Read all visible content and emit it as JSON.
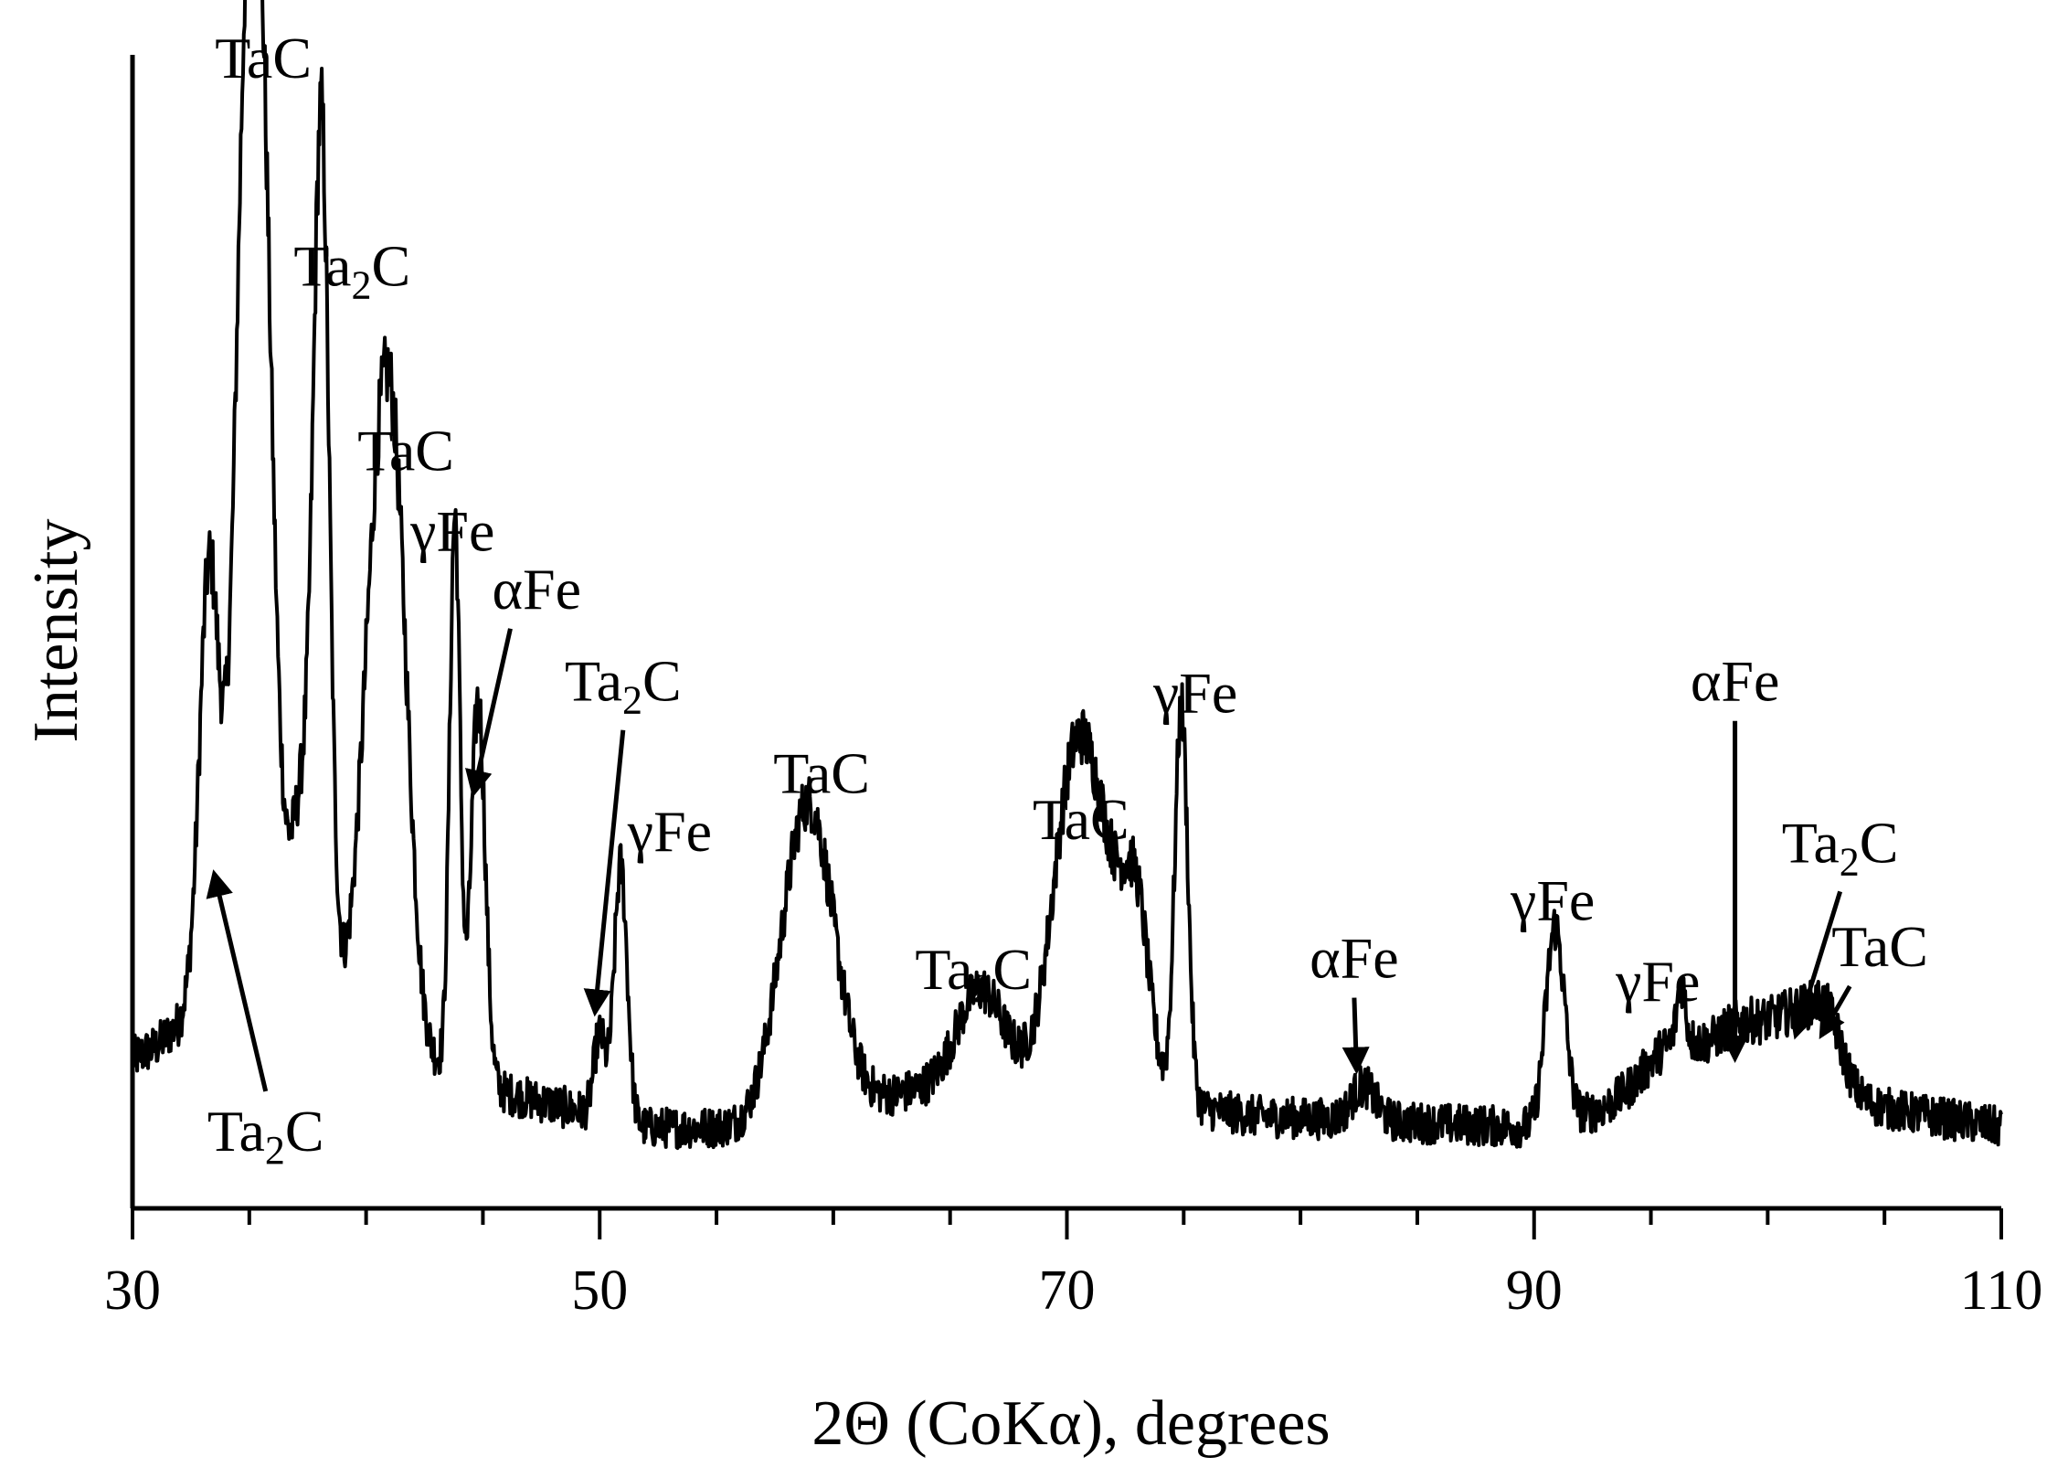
{
  "chart_data": {
    "type": "line",
    "title": "",
    "xlabel": "2Θ (CoKα), degrees",
    "ylabel": "Intensity",
    "xlim": [
      30,
      110
    ],
    "ylim": [
      0,
      100
    ],
    "xticks": [
      30,
      50,
      70,
      90,
      110
    ],
    "y_tick_labels": false,
    "grid": false,
    "legend": "none",
    "line_color": "#000000",
    "peaks": [
      {
        "x": 33.3,
        "y": 34,
        "w": 0.4
      },
      {
        "x": 35.0,
        "y": 86,
        "w": 0.55
      },
      {
        "x": 35.7,
        "y": 36,
        "w": 0.45
      },
      {
        "x": 38.1,
        "y": 64,
        "w": 0.32
      },
      {
        "x": 37.5,
        "y": 20,
        "w": 0.7
      },
      {
        "x": 40.6,
        "y": 46,
        "w": 0.7
      },
      {
        "x": 41.4,
        "y": 24,
        "w": 0.55
      },
      {
        "x": 43.8,
        "y": 48,
        "w": 0.22
      },
      {
        "x": 44.8,
        "y": 33,
        "w": 0.3
      },
      {
        "x": 50.0,
        "y": 7,
        "w": 0.25
      },
      {
        "x": 50.9,
        "y": 22,
        "w": 0.28
      },
      {
        "x": 58.9,
        "y": 27,
        "w": 1.1
      },
      {
        "x": 66.3,
        "y": 8,
        "w": 1.0
      },
      {
        "x": 70.2,
        "y": 20,
        "w": 0.9
      },
      {
        "x": 71.6,
        "y": 18,
        "w": 1.2
      },
      {
        "x": 73.0,
        "y": 10,
        "w": 0.5
      },
      {
        "x": 74.9,
        "y": 34,
        "w": 0.28
      },
      {
        "x": 82.7,
        "y": 3,
        "w": 0.5
      },
      {
        "x": 90.9,
        "y": 17,
        "w": 0.4
      },
      {
        "x": 96.1,
        "y": 5,
        "w": 1.3
      },
      {
        "x": 96.3,
        "y": 5,
        "w": 0.18
      },
      {
        "x": 98.8,
        "y": 5,
        "w": 1.0
      },
      {
        "x": 101.3,
        "y": 7,
        "w": 1.2
      },
      {
        "x": 102.6,
        "y": 4,
        "w": 0.6
      }
    ],
    "background": [
      {
        "x": 30,
        "y": 13
      },
      {
        "x": 31,
        "y": 14
      },
      {
        "x": 32,
        "y": 16
      },
      {
        "x": 33,
        "y": 22
      },
      {
        "x": 46,
        "y": 10
      },
      {
        "x": 52,
        "y": 7
      },
      {
        "x": 56,
        "y": 7
      },
      {
        "x": 63,
        "y": 10
      },
      {
        "x": 66,
        "y": 11
      },
      {
        "x": 68,
        "y": 11
      },
      {
        "x": 78,
        "y": 8
      },
      {
        "x": 90,
        "y": 7
      },
      {
        "x": 94,
        "y": 9
      },
      {
        "x": 100,
        "y": 10
      },
      {
        "x": 104,
        "y": 9
      },
      {
        "x": 110,
        "y": 7
      }
    ],
    "annotations": [
      {
        "label_main": "TaC",
        "label_sub": "",
        "label_tail": "",
        "x": 35.6,
        "y": 98
      },
      {
        "label_main": "Ta",
        "label_sub": "2",
        "label_tail": "C",
        "x": 39.4,
        "y": 80
      },
      {
        "label_main": "TaC",
        "label_sub": "",
        "label_tail": "",
        "x": 41.7,
        "y": 64
      },
      {
        "label_main": "γFe",
        "label_sub": "",
        "label_tail": "",
        "x": 43.7,
        "y": 57
      },
      {
        "label_main": "αFe",
        "label_sub": "",
        "label_tail": "",
        "x": 47.3,
        "y": 52,
        "arrow_to": [
          44.6,
          36
        ]
      },
      {
        "label_main": "Ta",
        "label_sub": "2",
        "label_tail": "C",
        "x": 51.0,
        "y": 44,
        "arrow_to": [
          49.8,
          17
        ]
      },
      {
        "label_main": "γFe",
        "label_sub": "",
        "label_tail": "",
        "x": 53.0,
        "y": 31
      },
      {
        "label_main": "TaC",
        "label_sub": "",
        "label_tail": "",
        "x": 59.5,
        "y": 36
      },
      {
        "label_main": "Ta",
        "label_sub": "2",
        "label_tail": "C",
        "x": 66.0,
        "y": 19
      },
      {
        "label_main": "TaC",
        "label_sub": "",
        "label_tail": "",
        "x": 70.6,
        "y": 32
      },
      {
        "label_main": "γFe",
        "label_sub": "",
        "label_tail": "",
        "x": 75.5,
        "y": 43
      },
      {
        "label_main": "αFe",
        "label_sub": "",
        "label_tail": "",
        "x": 82.3,
        "y": 20,
        "arrow_to": [
          82.4,
          12
        ]
      },
      {
        "label_main": "γFe",
        "label_sub": "",
        "label_tail": "",
        "x": 90.8,
        "y": 25
      },
      {
        "label_main": "γFe",
        "label_sub": "",
        "label_tail": "",
        "x": 95.3,
        "y": 18
      },
      {
        "label_main": "αFe",
        "label_sub": "",
        "label_tail": "",
        "x": 98.6,
        "y": 44,
        "arrow_to": [
          98.6,
          13
        ]
      },
      {
        "label_main": "Ta",
        "label_sub": "2",
        "label_tail": "C",
        "x": 103.1,
        "y": 30,
        "arrow_to": [
          101.2,
          15
        ]
      },
      {
        "label_main": "TaC",
        "label_sub": "",
        "label_tail": "",
        "x": 104.8,
        "y": 21,
        "arrow_to": [
          102.3,
          15
        ]
      },
      {
        "label_main": "Ta",
        "label_sub": "2",
        "label_tail": "C",
        "x": 35.7,
        "y": 5,
        "arrow_to": [
          33.5,
          29
        ]
      }
    ]
  }
}
